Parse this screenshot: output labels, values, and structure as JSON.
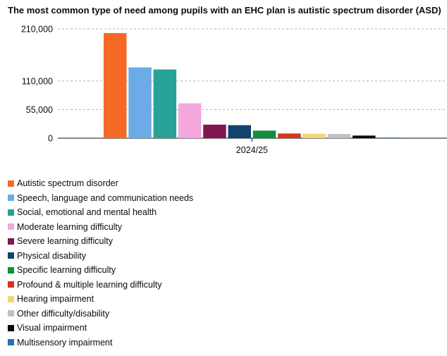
{
  "title": "The most common type of need among pupils with an EHC plan is autistic spectrum disorder (ASD)",
  "chart_data": {
    "type": "bar",
    "title": "The most common type of need among pupils with an EHC plan is autistic spectrum disorder (ASD)",
    "categories": [
      "2024/25"
    ],
    "xlabel": "",
    "ylabel": "",
    "ylim": [
      0,
      210000
    ],
    "yticks": [
      0,
      55000,
      110000,
      210000
    ],
    "ytick_labels": [
      "0",
      "55,000",
      "110,000",
      "210,000"
    ],
    "grid": "horizontal dashed",
    "legend_position": "bottom",
    "series": [
      {
        "name": "Autistic spectrum disorder",
        "color": "#f46a25",
        "values": [
          202000
        ]
      },
      {
        "name": "Speech, language and communication needs",
        "color": "#6bace6",
        "values": [
          136000
        ]
      },
      {
        "name": "Social, emotional and mental health",
        "color": "#28a197",
        "values": [
          132000
        ]
      },
      {
        "name": "Moderate learning difficulty",
        "color": "#f4a7dc",
        "values": [
          67000
        ]
      },
      {
        "name": "Severe learning difficulty",
        "color": "#801650",
        "values": [
          26000
        ]
      },
      {
        "name": "Physical disability",
        "color": "#12436d",
        "values": [
          25000
        ]
      },
      {
        "name": "Specific learning difficulty",
        "color": "#0f8f3a",
        "values": [
          14500
        ]
      },
      {
        "name": "Profound & multiple learning difficulty",
        "color": "#d4351c",
        "values": [
          9000
        ]
      },
      {
        "name": "Hearing impairment",
        "color": "#f2d675",
        "values": [
          8500
        ]
      },
      {
        "name": "Other difficulty/disability",
        "color": "#bfc1c3",
        "values": [
          8000
        ]
      },
      {
        "name": "Visual impairment",
        "color": "#0b0c0c",
        "values": [
          5000
        ]
      },
      {
        "name": "Multisensory impairment",
        "color": "#2471bb",
        "values": [
          1200
        ]
      }
    ]
  }
}
